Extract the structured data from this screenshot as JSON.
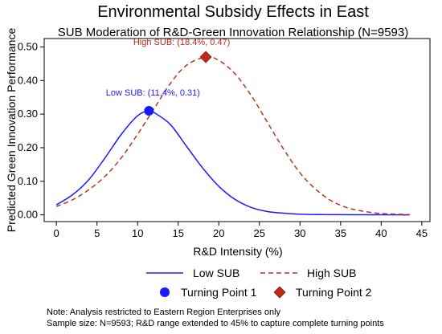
{
  "chart_data": {
    "type": "line",
    "title": "Environmental Subsidy Effects in East",
    "subtitle": "SUB Moderation of R&D-Green Innovation Relationship (N=9593)",
    "xlabel": "R&D Intensity (%)",
    "ylabel": "Predicted Green Innovation Performance",
    "xlim": [
      -1.5,
      46
    ],
    "ylim": [
      -0.02,
      0.525
    ],
    "x_ticks": [
      "0",
      "5",
      "10",
      "15",
      "20",
      "25",
      "30",
      "35",
      "40",
      "45"
    ],
    "y_ticks": [
      "0.00",
      "0.10",
      "0.20",
      "0.30",
      "0.40",
      "0.50"
    ],
    "grid": false,
    "series": [
      {
        "name": "Low SUB",
        "color": "#1a1aff",
        "style": "solid",
        "x": [
          0,
          2,
          4,
          6,
          8,
          10,
          11.4,
          12,
          14,
          16,
          18,
          20,
          22,
          24,
          26,
          28,
          30,
          35,
          40,
          43.5
        ],
        "y": [
          0.03,
          0.06,
          0.105,
          0.17,
          0.24,
          0.295,
          0.31,
          0.305,
          0.27,
          0.205,
          0.14,
          0.085,
          0.046,
          0.022,
          0.01,
          0.005,
          0.002,
          0.0005,
          0.0002,
          0.0001
        ]
      },
      {
        "name": "High SUB",
        "color": "#b8381f",
        "style": "dashed",
        "x": [
          0,
          2,
          4,
          6,
          8,
          10,
          12,
          14,
          16,
          18.4,
          20,
          22,
          24,
          26,
          28,
          30,
          32,
          34,
          36,
          38,
          40,
          43.5
        ],
        "y": [
          0.025,
          0.045,
          0.075,
          0.115,
          0.17,
          0.24,
          0.315,
          0.39,
          0.445,
          0.47,
          0.46,
          0.42,
          0.355,
          0.275,
          0.195,
          0.125,
          0.075,
          0.04,
          0.02,
          0.01,
          0.004,
          0.001
        ]
      }
    ],
    "turning_points": [
      {
        "name": "Turning Point 1",
        "x": 11.4,
        "y": 0.31,
        "marker": "circle",
        "color": "#1a1aff",
        "label": "Low SUB: (11.4%, 0.31)",
        "label_color": "#1a1aff"
      },
      {
        "name": "Turning Point 2",
        "x": 18.4,
        "y": 0.47,
        "marker": "diamond",
        "color": "#c0281c",
        "label": "High SUB: (18.4%, 0.47)",
        "label_color": "#c0281c"
      }
    ],
    "legend": {
      "placement": "bottom",
      "items": [
        "Low SUB",
        "High SUB",
        "Turning Point 1",
        "Turning Point 2"
      ]
    }
  },
  "note": {
    "line1": "Note: Analysis restricted to Eastern Region Enterprises only",
    "line2": "Sample size: N=9593; R&D range extended to 45% to capture complete turning points"
  }
}
